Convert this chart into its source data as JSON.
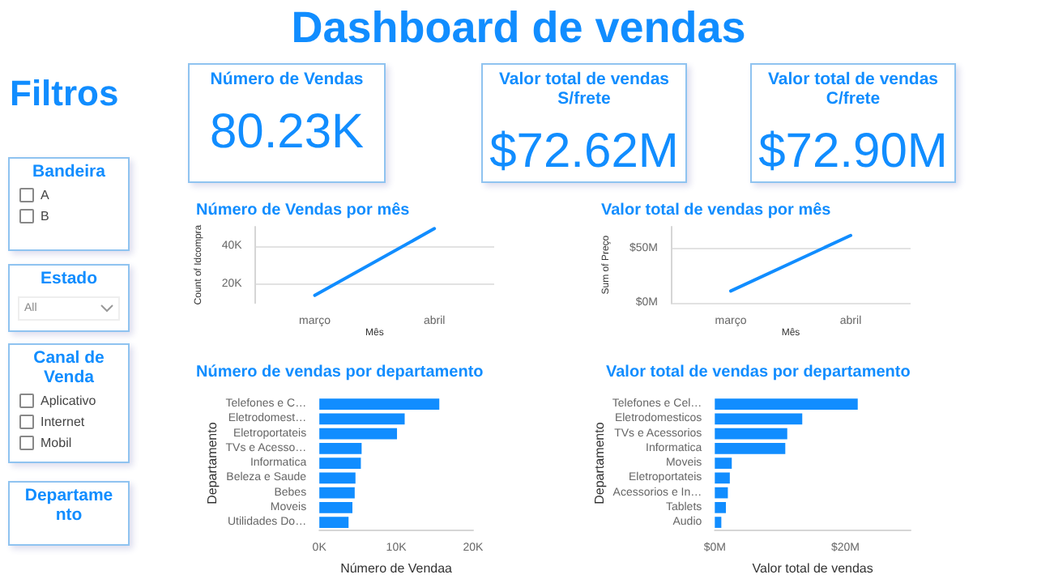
{
  "chart_data": [
    {
      "type": "other",
      "title": "Dashboard de vendas"
    },
    {
      "type": "other",
      "title": "Filtros"
    },
    {
      "type": "other",
      "title": "Número de Vendas",
      "annotations": [
        "80.23K"
      ]
    },
    {
      "type": "other",
      "title": "Valor total de vendas S/frete",
      "annotations": [
        "$72.62M"
      ]
    },
    {
      "type": "other",
      "title": "Valor total de vendas C/frete",
      "annotations": [
        "$72.90M"
      ]
    },
    {
      "type": "other",
      "title": "Bandeira",
      "annotations": [
        "A",
        "B"
      ]
    },
    {
      "type": "other",
      "title": "Estado",
      "annotations": [
        "All"
      ]
    },
    {
      "type": "other",
      "title": "Canal de Venda",
      "annotations": [
        "Aplicativo",
        "Internet",
        "Mobil"
      ]
    },
    {
      "type": "other",
      "title": "Departamento"
    },
    {
      "type": "line",
      "title": "Número de Vendas por mês",
      "xlabel": "Mês",
      "ylabel": "Count of Idcompra",
      "categories": [
        "março",
        "abril"
      ],
      "series": [
        {
          "color": "#118dff",
          "values": [
            14000,
            49000
          ]
        }
      ],
      "ylim": [
        10000,
        50000
      ],
      "yticks": [
        {
          "value": 20000,
          "label": "20K"
        },
        {
          "value": 40000,
          "label": "40K"
        }
      ],
      "grid": "y"
    },
    {
      "type": "line",
      "title": "Valor total de vendas por mês",
      "xlabel": "Mês",
      "ylabel": "Sum of Preço",
      "categories": [
        "março",
        "abril"
      ],
      "series": [
        {
          "color": "#118dff",
          "values": [
            11000000,
            62000000
          ]
        }
      ],
      "ylim": [
        0,
        70000000
      ],
      "yticks": [
        {
          "value": 0,
          "label": "$0M"
        },
        {
          "value": 50000000,
          "label": "$50M"
        }
      ],
      "grid": "y"
    },
    {
      "type": "bar",
      "orientation": "horizontal",
      "title": "Número de vendas por departamento",
      "xlabel": "Número de Vendaa",
      "ylabel": "Departamento",
      "categories": [
        "Telefones e C…",
        "Eletrodomest…",
        "Eletroportateis",
        "TVs e Acesso…",
        "Informatica",
        "Beleza e Saude",
        "Bebes",
        "Moveis",
        "Utilidades Do…"
      ],
      "series": [
        {
          "color": "#118dff",
          "values": [
            15600,
            11100,
            10100,
            5500,
            5400,
            4700,
            4600,
            4300,
            3800
          ]
        }
      ],
      "xlim": [
        0,
        20000
      ],
      "xticks": [
        {
          "value": 0,
          "label": "0K"
        },
        {
          "value": 10000,
          "label": "10K"
        },
        {
          "value": 20000,
          "label": "20K"
        }
      ]
    },
    {
      "type": "bar",
      "orientation": "horizontal",
      "title": "Valor total de vendas por departamento",
      "xlabel": "Valor total de vendas",
      "ylabel": "Departamento",
      "categories": [
        "Telefones e Cel…",
        "Eletrodomesticos",
        "TVs e Acessorios",
        "Informatica",
        "Moveis",
        "Eletroportateis",
        "Acessorios e In…",
        "Tablets",
        "Audio"
      ],
      "series": [
        {
          "color": "#118dff",
          "values": [
            21900000,
            13400000,
            11100000,
            10800000,
            2600000,
            2300000,
            2000000,
            1700000,
            1000000
          ]
        }
      ],
      "xlim": [
        0,
        30000000
      ],
      "xticks": [
        {
          "value": 0,
          "label": "$0M"
        },
        {
          "value": 20000000,
          "label": "$20M"
        }
      ]
    }
  ]
}
